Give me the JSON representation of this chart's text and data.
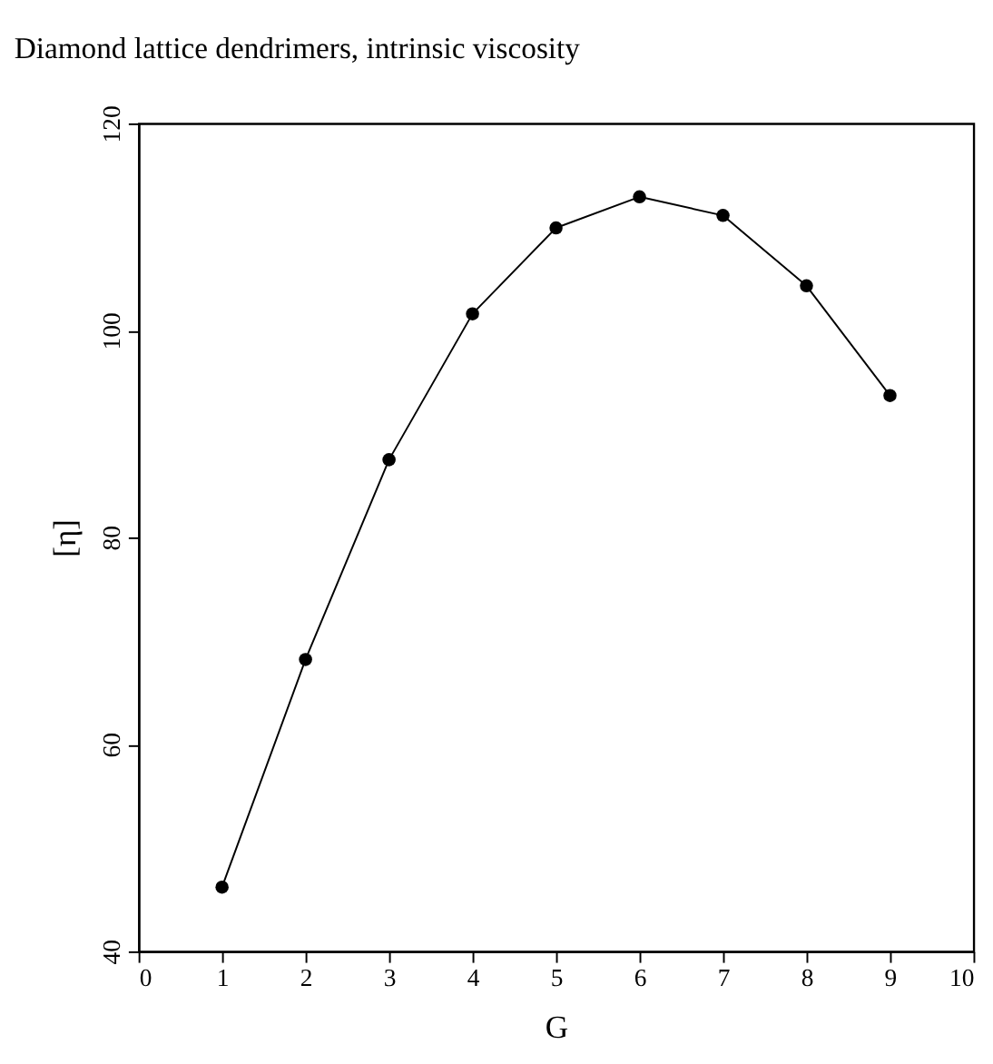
{
  "chart_data": {
    "type": "line",
    "title": "Diamond lattice dendrimers, intrinsic viscosity",
    "xlabel": "G",
    "ylabel": "[η]",
    "x": [
      1,
      2,
      3,
      4,
      5,
      6,
      7,
      8,
      9
    ],
    "series": [
      {
        "color": "#000000",
        "values": [
          46.2,
          68.2,
          87.5,
          101.6,
          109.9,
          112.9,
          111.1,
          104.3,
          93.7
        ]
      }
    ],
    "xlim": [
      0,
      10
    ],
    "xticks": [
      0,
      1,
      2,
      3,
      4,
      5,
      6,
      7,
      8,
      9,
      10
    ],
    "ylim": [
      40,
      120
    ],
    "yticks": [
      40,
      60,
      80,
      100,
      120
    ],
    "grid": false,
    "legend": false,
    "marker": "circle",
    "line_style": "solid"
  }
}
